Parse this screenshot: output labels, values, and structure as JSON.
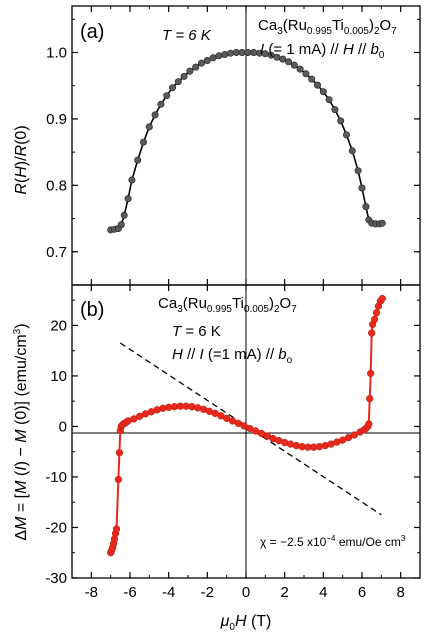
{
  "chart_data": [
    {
      "type": "scatter",
      "panel_label": "(a)",
      "ylabel": "R(H)/R(0)",
      "xlim": [
        -9,
        9
      ],
      "ylim": [
        0.65,
        1.07
      ],
      "yticks": [
        "0.7",
        "0.8",
        "0.9",
        "1.0"
      ],
      "grid": false,
      "annotations": {
        "temperature": "T = 6 K",
        "compound": "Ca3(Ru0.995Ti0.005)2O7",
        "condition": "I (= 1 mA) // H // b0"
      },
      "marker_color": "#5a5a5a",
      "series": [
        {
          "points": [
            [
              -7.0,
              0.733
            ],
            [
              -6.8,
              0.734
            ],
            [
              -6.6,
              0.735
            ],
            [
              -6.45,
              0.741
            ],
            [
              -6.3,
              0.755
            ],
            [
              -6.1,
              0.78
            ],
            [
              -5.9,
              0.808
            ],
            [
              -5.6,
              0.838
            ],
            [
              -5.3,
              0.865
            ],
            [
              -5.0,
              0.888
            ],
            [
              -4.7,
              0.906
            ],
            [
              -4.4,
              0.922
            ],
            [
              -4.1,
              0.935
            ],
            [
              -3.8,
              0.947
            ],
            [
              -3.5,
              0.956
            ],
            [
              -3.2,
              0.964
            ],
            [
              -2.9,
              0.972
            ],
            [
              -2.6,
              0.978
            ],
            [
              -2.3,
              0.984
            ],
            [
              -2.0,
              0.988
            ],
            [
              -1.7,
              0.992
            ],
            [
              -1.4,
              0.995
            ],
            [
              -1.1,
              0.997
            ],
            [
              -0.8,
              0.999
            ],
            [
              -0.5,
              1.0
            ],
            [
              -0.2,
              1.0
            ],
            [
              0.1,
              1.0
            ],
            [
              0.4,
              1.0
            ],
            [
              0.7,
              0.999
            ],
            [
              1.0,
              0.998
            ],
            [
              1.3,
              0.996
            ],
            [
              1.6,
              0.993
            ],
            [
              1.9,
              0.99
            ],
            [
              2.2,
              0.986
            ],
            [
              2.5,
              0.981
            ],
            [
              2.8,
              0.975
            ],
            [
              3.1,
              0.968
            ],
            [
              3.4,
              0.96
            ],
            [
              3.7,
              0.951
            ],
            [
              4.0,
              0.941
            ],
            [
              4.3,
              0.929
            ],
            [
              4.6,
              0.914
            ],
            [
              4.9,
              0.897
            ],
            [
              5.2,
              0.876
            ],
            [
              5.5,
              0.852
            ],
            [
              5.8,
              0.822
            ],
            [
              6.0,
              0.796
            ],
            [
              6.2,
              0.768
            ],
            [
              6.35,
              0.748
            ],
            [
              6.5,
              0.743
            ],
            [
              6.7,
              0.742
            ],
            [
              6.9,
              0.742
            ],
            [
              7.05,
              0.743
            ]
          ]
        }
      ]
    },
    {
      "type": "scatter",
      "panel_label": "(b)",
      "xlabel": "μ0H (T)",
      "ylabel": "ΔM = [M (I) − M (0)] (emu/cm3)",
      "xlim": [
        -9,
        9
      ],
      "ylim": [
        -30,
        28
      ],
      "xticks": [
        "-8",
        "-6",
        "-4",
        "-2",
        "0",
        "2",
        "4",
        "6",
        "8"
      ],
      "yticks": [
        "-30",
        "-20",
        "-10",
        "0",
        "10",
        "20"
      ],
      "grid": false,
      "annotations": {
        "compound": "Ca3(Ru0.995Ti0.005)2O7",
        "temperature": "T = 6 K",
        "condition": "H // I (=1 mA) // bo",
        "chi": "χ = −2.5 x10−4 emu/Oe cm3"
      },
      "marker_color": "#e8291c",
      "dashed_line": {
        "x": [
          -6.5,
          7.0
        ],
        "y": [
          16.5,
          -17.5
        ]
      },
      "series": [
        {
          "points": [
            [
              -7.0,
              -25.0
            ],
            [
              -6.95,
              -24.5
            ],
            [
              -6.9,
              -24.0
            ],
            [
              -6.85,
              -23.2
            ],
            [
              -6.8,
              -22.3
            ],
            [
              -6.75,
              -21.2
            ],
            [
              -6.7,
              -20.3
            ],
            [
              -6.6,
              -10.5
            ],
            [
              -6.55,
              -5.2
            ],
            [
              -6.5,
              -0.8
            ],
            [
              -6.45,
              0.0
            ],
            [
              -6.4,
              0.3
            ],
            [
              -6.3,
              0.6
            ],
            [
              -6.2,
              0.8
            ],
            [
              -6.1,
              1.1
            ],
            [
              -5.8,
              1.5
            ],
            [
              -5.5,
              2.0
            ],
            [
              -5.2,
              2.5
            ],
            [
              -4.9,
              2.9
            ],
            [
              -4.6,
              3.3
            ],
            [
              -4.3,
              3.6
            ],
            [
              -4.0,
              3.8
            ],
            [
              -3.7,
              3.9
            ],
            [
              -3.4,
              4.0
            ],
            [
              -3.1,
              4.0
            ],
            [
              -2.8,
              3.9
            ],
            [
              -2.5,
              3.7
            ],
            [
              -2.2,
              3.4
            ],
            [
              -1.9,
              3.0
            ],
            [
              -1.6,
              2.6
            ],
            [
              -1.3,
              2.1
            ],
            [
              -1.0,
              1.6
            ],
            [
              -0.7,
              1.1
            ],
            [
              -0.4,
              0.6
            ],
            [
              -0.1,
              0.1
            ],
            [
              0.2,
              -0.4
            ],
            [
              0.5,
              -0.9
            ],
            [
              0.8,
              -1.4
            ],
            [
              1.1,
              -1.9
            ],
            [
              1.4,
              -2.4
            ],
            [
              1.7,
              -2.8
            ],
            [
              2.0,
              -3.2
            ],
            [
              2.3,
              -3.5
            ],
            [
              2.6,
              -3.8
            ],
            [
              2.9,
              -4.0
            ],
            [
              3.2,
              -4.1
            ],
            [
              3.5,
              -4.1
            ],
            [
              3.8,
              -4.0
            ],
            [
              4.1,
              -3.8
            ],
            [
              4.4,
              -3.5
            ],
            [
              4.7,
              -3.1
            ],
            [
              5.0,
              -2.7
            ],
            [
              5.3,
              -2.2
            ],
            [
              5.6,
              -1.7
            ],
            [
              5.9,
              -1.1
            ],
            [
              6.1,
              -0.7
            ],
            [
              6.2,
              -0.4
            ],
            [
              6.3,
              0.0
            ],
            [
              6.35,
              0.5
            ],
            [
              6.4,
              5.5
            ],
            [
              6.45,
              10.5
            ],
            [
              6.5,
              18.5
            ],
            [
              6.55,
              20.2
            ],
            [
              6.65,
              21.2
            ],
            [
              6.75,
              22.5
            ],
            [
              6.85,
              23.8
            ],
            [
              6.95,
              24.8
            ],
            [
              7.05,
              25.3
            ]
          ]
        }
      ]
    }
  ]
}
